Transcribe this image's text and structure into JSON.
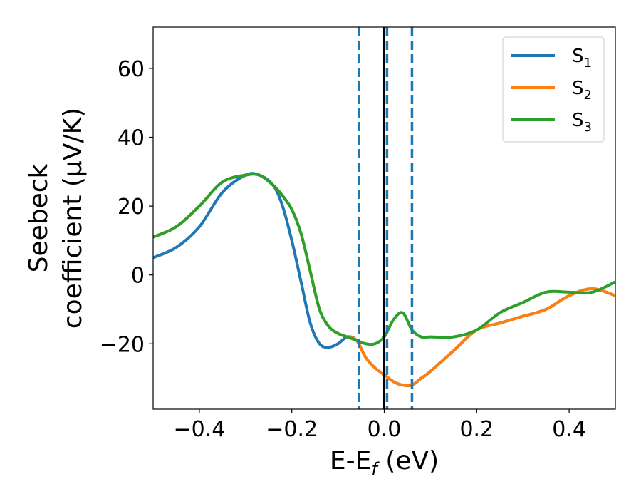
{
  "chart_data": {
    "type": "line",
    "xlabel": "E-E_f (eV)",
    "ylabel_line1": "Seebeck",
    "ylabel_line2": "coefficient  (μV/K)",
    "xlim": [
      -0.5,
      0.5
    ],
    "ylim": [
      -39,
      72
    ],
    "xticks": [
      -0.4,
      -0.2,
      0.0,
      0.2,
      0.4
    ],
    "xtick_labels": [
      "−0.4",
      "−0.2",
      "0.0",
      "0.2",
      "0.4"
    ],
    "yticks": [
      -20,
      0,
      20,
      40,
      60
    ],
    "ytick_labels": [
      "−20",
      "0",
      "20",
      "40",
      "60"
    ],
    "grid": false,
    "legend_position": "top-right",
    "vlines": [
      {
        "x": -0.055,
        "style": "dashed",
        "color": "#1f77b4"
      },
      {
        "x": 0.0,
        "style": "solid",
        "color": "#000000"
      },
      {
        "x": 0.006,
        "style": "dashed",
        "color": "#1f77b4"
      },
      {
        "x": 0.06,
        "style": "dashed",
        "color": "#1f77b4"
      }
    ],
    "series": [
      {
        "name": "S1",
        "label_base": "S",
        "label_sub": "1",
        "color": "#1f77b4",
        "x": [
          -0.5,
          -0.45,
          -0.4,
          -0.35,
          -0.3,
          -0.27,
          -0.24,
          -0.22,
          -0.2,
          -0.18,
          -0.16,
          -0.14,
          -0.12,
          -0.1,
          -0.08,
          -0.06,
          -0.04,
          -0.02,
          0.0,
          0.02,
          0.04,
          0.06,
          0.08,
          0.1,
          0.15,
          0.2,
          0.25,
          0.3,
          0.35,
          0.4,
          0.45,
          0.5
        ],
        "y": [
          5,
          8,
          14,
          24,
          29,
          29,
          26,
          20,
          10,
          -2,
          -14,
          -20,
          -21,
          -20,
          -18,
          -19,
          -24,
          -27,
          -29,
          -31,
          -32,
          -32,
          -30,
          -28,
          -22,
          -16,
          -14,
          -12,
          -10,
          -6,
          -4,
          -6
        ]
      },
      {
        "name": "S2",
        "label_base": "S",
        "label_sub": "2",
        "color": "#ff7f0e",
        "x": [
          -0.5,
          -0.45,
          -0.4,
          -0.35,
          -0.3,
          -0.27,
          -0.24,
          -0.22,
          -0.2,
          -0.18,
          -0.16,
          -0.14,
          -0.12,
          -0.1,
          -0.08,
          -0.06,
          -0.04,
          -0.02,
          0.0,
          0.02,
          0.04,
          0.06,
          0.08,
          0.1,
          0.15,
          0.2,
          0.25,
          0.3,
          0.35,
          0.4,
          0.45,
          0.5
        ],
        "y": [
          11,
          14,
          20,
          27,
          29,
          29,
          26,
          23,
          19,
          12,
          1,
          -10,
          -15,
          -17,
          -18,
          -19,
          -24,
          -27,
          -29,
          -31,
          -32,
          -32,
          -30,
          -28,
          -22,
          -16,
          -14,
          -12,
          -10,
          -6,
          -4,
          -6
        ]
      },
      {
        "name": "S3",
        "label_base": "S",
        "label_sub": "3",
        "color": "#2ca02c",
        "x": [
          -0.5,
          -0.45,
          -0.4,
          -0.35,
          -0.3,
          -0.27,
          -0.24,
          -0.22,
          -0.2,
          -0.18,
          -0.16,
          -0.14,
          -0.12,
          -0.1,
          -0.08,
          -0.06,
          -0.04,
          -0.02,
          0.0,
          0.02,
          0.04,
          0.06,
          0.08,
          0.1,
          0.15,
          0.2,
          0.25,
          0.3,
          0.35,
          0.4,
          0.45,
          0.5
        ],
        "y": [
          11,
          14,
          20,
          27,
          29,
          29,
          26,
          23,
          19,
          12,
          1,
          -10,
          -15,
          -17,
          -18,
          -19,
          -20,
          -20,
          -18,
          -13,
          -11,
          -16,
          -18,
          -18,
          -18,
          -16,
          -11,
          -8,
          -5,
          -5,
          -5,
          -2
        ]
      }
    ]
  }
}
